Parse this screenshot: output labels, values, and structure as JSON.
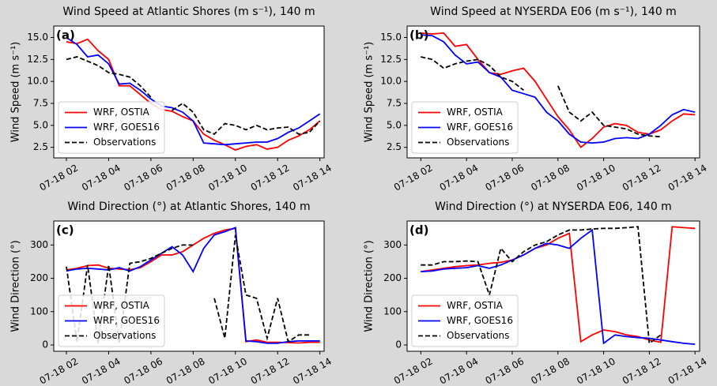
{
  "chart_data": [
    {
      "type": "line",
      "title": "Wind Speed at Atlantic Shores (m s⁻¹), 140 m",
      "panel_label": "(a)",
      "y_label": "Wind Speed (m s⁻¹)",
      "x": [
        2,
        2.5,
        3,
        3.5,
        4,
        4.5,
        5,
        5.5,
        6,
        6.5,
        7,
        7.5,
        8,
        8.5,
        9,
        9.5,
        10,
        10.5,
        11,
        11.5,
        12,
        12.5,
        13,
        13.5,
        14
      ],
      "xlim": [
        1.4,
        14.2
      ],
      "xticks": [
        {
          "value": 2,
          "label": "07-18 02"
        },
        {
          "value": 4,
          "label": "07-18 04"
        },
        {
          "value": 6,
          "label": "07-18 06"
        },
        {
          "value": 8,
          "label": "07-18 08"
        },
        {
          "value": 10,
          "label": "07-18 10"
        },
        {
          "value": 12,
          "label": "07-18 12"
        },
        {
          "value": 14,
          "label": "07-18 14"
        }
      ],
      "ylim": [
        1.3,
        16.3
      ],
      "yticks": [
        2.5,
        {
          "value": 5,
          "label": "5.0"
        },
        7.5,
        {
          "value": 10,
          "label": "10.0"
        },
        12.5,
        {
          "value": 15,
          "label": "15.0"
        }
      ],
      "legend": "lower left",
      "series": [
        {
          "name": "WRF, OSTIA",
          "color": "#ff0000",
          "linestyle": "solid",
          "values": [
            14.5,
            14.3,
            14.8,
            13.5,
            12.5,
            9.5,
            9.5,
            8.5,
            7.5,
            6.8,
            6.6,
            6.0,
            5.5,
            4.0,
            3.3,
            2.8,
            2.2,
            2.6,
            2.8,
            2.3,
            2.5,
            3.3,
            3.8,
            4.5,
            5.5
          ]
        },
        {
          "name": "WRF, GOES16",
          "color": "#0000ff",
          "linestyle": "solid",
          "values": [
            15.0,
            14.2,
            12.8,
            13.0,
            12.0,
            9.7,
            9.8,
            9.0,
            8.0,
            7.2,
            7.0,
            6.5,
            5.5,
            3.0,
            2.9,
            2.8,
            2.9,
            3.0,
            3.1,
            3.1,
            3.5,
            4.2,
            4.7,
            5.5,
            6.3
          ]
        },
        {
          "name": "Observations",
          "color": "#000000",
          "linestyle": "dashed",
          "values": [
            12.5,
            12.8,
            12.3,
            11.8,
            11.0,
            10.8,
            10.5,
            9.5,
            8.2,
            null,
            6.7,
            7.5,
            6.5,
            4.5,
            4.0,
            5.2,
            5.0,
            4.5,
            5.0,
            4.5,
            4.7,
            4.8,
            4.0,
            4.2,
            5.5
          ]
        }
      ]
    },
    {
      "type": "line",
      "title": "Wind Speed at NYSERDA E06 (m s⁻¹), 140 m",
      "panel_label": "(b)",
      "y_label": "Wind Speed (m s⁻¹)",
      "x": [
        2,
        2.5,
        3,
        3.5,
        4,
        4.5,
        5,
        5.5,
        6,
        6.5,
        7,
        7.5,
        8,
        8.5,
        9,
        9.5,
        10,
        10.5,
        11,
        11.5,
        12,
        12.5,
        13,
        13.5,
        14
      ],
      "xlim": [
        1.4,
        14.2
      ],
      "xticks": [
        {
          "value": 2,
          "label": "07-18 02"
        },
        {
          "value": 4,
          "label": "07-18 04"
        },
        {
          "value": 6,
          "label": "07-18 06"
        },
        {
          "value": 8,
          "label": "07-18 08"
        },
        {
          "value": 10,
          "label": "07-18 10"
        },
        {
          "value": 12,
          "label": "07-18 12"
        },
        {
          "value": 14,
          "label": "07-18 14"
        }
      ],
      "ylim": [
        1.3,
        16.3
      ],
      "yticks": [
        2.5,
        {
          "value": 5,
          "label": "5.0"
        },
        7.5,
        {
          "value": 10,
          "label": "10.0"
        },
        12.5,
        {
          "value": 15,
          "label": "15.0"
        }
      ],
      "legend": "lower left",
      "series": [
        {
          "name": "WRF, OSTIA",
          "color": "#ff0000",
          "linestyle": "solid",
          "values": [
            15.5,
            15.4,
            15.5,
            14.0,
            14.2,
            12.5,
            11.0,
            10.8,
            11.2,
            11.5,
            10.0,
            8.0,
            6.0,
            4.5,
            2.5,
            3.5,
            4.8,
            5.2,
            5.0,
            4.2,
            4.0,
            4.5,
            5.5,
            6.3,
            6.2
          ]
        },
        {
          "name": "WRF, GOES16",
          "color": "#0000ff",
          "linestyle": "solid",
          "values": [
            15.3,
            15.2,
            14.5,
            13.0,
            12.0,
            12.2,
            11.0,
            10.5,
            9.0,
            8.6,
            8.2,
            6.5,
            5.5,
            4.0,
            3.1,
            3.0,
            3.1,
            3.5,
            3.6,
            3.5,
            4.0,
            5.0,
            6.2,
            6.8,
            6.5
          ]
        },
        {
          "name": "Observations",
          "color": "#000000",
          "linestyle": "dashed",
          "values": [
            12.8,
            12.5,
            11.5,
            12.0,
            12.3,
            12.5,
            11.8,
            10.5,
            10.0,
            9.0,
            null,
            null,
            9.5,
            6.5,
            5.5,
            6.5,
            5.0,
            4.8,
            4.6,
            4.0,
            3.8,
            3.7,
            null,
            null,
            null
          ]
        }
      ]
    },
    {
      "type": "line",
      "title": "Wind Direction (°) at Atlantic Shores, 140 m",
      "panel_label": "(c)",
      "y_label": "Wind Direction (°)",
      "x": [
        2,
        2.5,
        3,
        3.5,
        4,
        4.5,
        5,
        5.5,
        6,
        6.5,
        7,
        7.5,
        8,
        8.5,
        9,
        9.5,
        10,
        10.5,
        11,
        11.5,
        12,
        12.5,
        13,
        13.5,
        14
      ],
      "xlim": [
        1.4,
        14.2
      ],
      "xticks": [
        {
          "value": 2,
          "label": "07-18 02"
        },
        {
          "value": 4,
          "label": "07-18 04"
        },
        {
          "value": 6,
          "label": "07-18 06"
        },
        {
          "value": 8,
          "label": "07-18 08"
        },
        {
          "value": 10,
          "label": "07-18 10"
        },
        {
          "value": 12,
          "label": "07-18 12"
        },
        {
          "value": 14,
          "label": "07-18 14"
        }
      ],
      "ylim": [
        -19,
        372
      ],
      "yticks": [
        0,
        100,
        200,
        300
      ],
      "legend": "lower left",
      "series": [
        {
          "name": "WRF, OSTIA",
          "color": "#ff0000",
          "linestyle": "solid",
          "values": [
            225,
            230,
            238,
            240,
            230,
            228,
            226,
            232,
            250,
            270,
            270,
            280,
            300,
            320,
            335,
            345,
            350,
            10,
            15,
            8,
            8,
            7,
            6,
            8,
            8
          ]
        },
        {
          "name": "WRF, GOES16",
          "color": "#0000ff",
          "linestyle": "solid",
          "values": [
            222,
            228,
            230,
            228,
            225,
            232,
            222,
            235,
            255,
            275,
            295,
            270,
            220,
            290,
            330,
            340,
            352,
            12,
            10,
            5,
            5,
            10,
            12,
            12,
            12
          ]
        },
        {
          "name": "Observations",
          "color": "#000000",
          "linestyle": "dashed",
          "values": [
            235,
            10,
            240,
            5,
            240,
            5,
            245,
            250,
            260,
            275,
            290,
            300,
            300,
            null,
            140,
            20,
            330,
            150,
            140,
            20,
            140,
            10,
            30,
            30,
            null
          ]
        }
      ]
    },
    {
      "type": "line",
      "title": "Wind Direction (°) at NYSERDA E06, 140 m",
      "panel_label": "(d)",
      "y_label": "Wind Direction (°)",
      "x": [
        2,
        2.5,
        3,
        3.5,
        4,
        4.5,
        5,
        5.5,
        6,
        6.5,
        7,
        7.5,
        8,
        8.5,
        9,
        9.5,
        10,
        10.5,
        11,
        11.5,
        12,
        12.5,
        13,
        13.5,
        14
      ],
      "xlim": [
        1.4,
        14.2
      ],
      "xticks": [
        {
          "value": 2,
          "label": "07-18 02"
        },
        {
          "value": 4,
          "label": "07-18 04"
        },
        {
          "value": 6,
          "label": "07-18 06"
        },
        {
          "value": 8,
          "label": "07-18 08"
        },
        {
          "value": 10,
          "label": "07-18 10"
        },
        {
          "value": 12,
          "label": "07-18 12"
        },
        {
          "value": 14,
          "label": "07-18 14"
        }
      ],
      "ylim": [
        -19,
        372
      ],
      "yticks": [
        0,
        100,
        200,
        300
      ],
      "legend": "lower left",
      "series": [
        {
          "name": "WRF, OSTIA",
          "color": "#ff0000",
          "linestyle": "solid",
          "values": [
            220,
            225,
            230,
            235,
            238,
            240,
            245,
            248,
            255,
            270,
            290,
            300,
            320,
            335,
            10,
            30,
            45,
            40,
            30,
            25,
            15,
            8,
            355,
            352,
            350
          ]
        },
        {
          "name": "WRF, GOES16",
          "color": "#0000ff",
          "linestyle": "solid",
          "values": [
            220,
            222,
            228,
            230,
            232,
            238,
            230,
            240,
            255,
            270,
            290,
            305,
            300,
            290,
            320,
            345,
            5,
            30,
            25,
            22,
            20,
            15,
            10,
            5,
            2
          ]
        },
        {
          "name": "Observations",
          "color": "#000000",
          "linestyle": "dashed",
          "values": [
            240,
            240,
            250,
            250,
            252,
            250,
            150,
            290,
            250,
            280,
            300,
            310,
            330,
            345,
            345,
            348,
            350,
            350,
            352,
            355,
            5,
            30,
            null,
            null,
            null
          ]
        }
      ]
    }
  ]
}
